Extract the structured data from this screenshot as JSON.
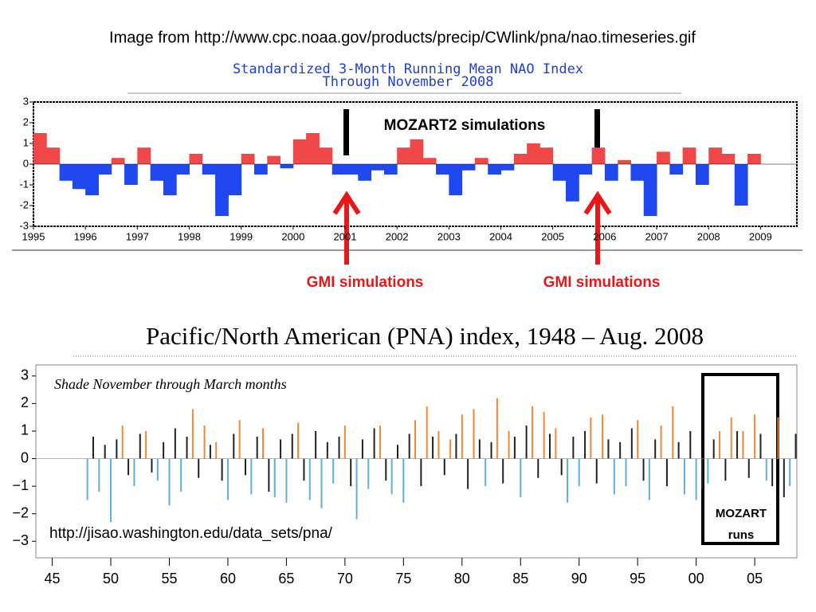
{
  "header": {
    "source_note": "Image from http://www.cpc.noaa.gov/products/precip/CWlink/pna/nao.timeseries.gif"
  },
  "chart_data": [
    {
      "type": "bar",
      "title": "Standardized 3-Month Running Mean NAO Index",
      "subtitle": "Through November 2008",
      "x": [
        1995,
        1995.25,
        1995.5,
        1995.75,
        1996,
        1996.25,
        1996.5,
        1996.75,
        1997,
        1997.25,
        1997.5,
        1997.75,
        1998,
        1998.25,
        1998.5,
        1998.75,
        1999,
        1999.25,
        1999.5,
        1999.75,
        2000,
        2000.25,
        2000.5,
        2000.75,
        2001,
        2001.25,
        2001.5,
        2001.75,
        2002,
        2002.25,
        2002.5,
        2002.75,
        2003,
        2003.25,
        2003.5,
        2003.75,
        2004,
        2004.25,
        2004.5,
        2004.75,
        2005,
        2005.25,
        2005.5,
        2005.75,
        2006,
        2006.25,
        2006.5,
        2006.75,
        2007,
        2007.25,
        2007.5,
        2007.75,
        2008,
        2008.25,
        2008.5,
        2008.75
      ],
      "values": [
        1.5,
        0.8,
        -0.8,
        -1.2,
        -1.5,
        -0.5,
        0.3,
        -1.0,
        0.8,
        -0.8,
        -1.5,
        -0.5,
        0.5,
        -0.5,
        -2.5,
        -1.5,
        0.5,
        -0.5,
        0.4,
        -0.2,
        1.2,
        1.5,
        0.8,
        -0.5,
        -0.5,
        -0.8,
        -0.3,
        -0.5,
        0.8,
        1.2,
        0.3,
        -0.5,
        -1.5,
        -0.3,
        0.3,
        -0.5,
        -0.3,
        0.5,
        1.0,
        0.8,
        -0.8,
        -1.8,
        -0.5,
        0.8,
        -0.8,
        0.2,
        -0.8,
        -2.5,
        0.6,
        -0.5,
        0.8,
        -1.0,
        0.8,
        0.5,
        -2.0,
        0.5
      ],
      "colors": {
        "positive": "#f04848",
        "negative": "#2048f0"
      },
      "xlim": [
        1995,
        2009.7
      ],
      "xticks": [
        1995,
        1996,
        1997,
        1998,
        1999,
        2000,
        2001,
        2002,
        2003,
        2004,
        2005,
        2006,
        2007,
        2008,
        2009
      ],
      "ylim": [
        -3,
        3
      ],
      "yticks": [
        -3,
        -2,
        -1,
        0,
        1,
        2,
        3
      ],
      "annotations": [
        {
          "text": "MOZART2  simulations"
        },
        {
          "text": "GMI  simulations"
        },
        {
          "text": "GMI  simulations"
        }
      ]
    },
    {
      "type": "bar",
      "title": "Pacific/North American (PNA) index, 1948 – Aug. 2008",
      "subtitle": "Shade November through March months",
      "x": [
        1948,
        1948.5,
        1949,
        1949.5,
        1950,
        1950.5,
        1951,
        1951.5,
        1952,
        1952.5,
        1953,
        1953.5,
        1954,
        1954.5,
        1955,
        1955.5,
        1956,
        1956.5,
        1957,
        1957.5,
        1958,
        1958.5,
        1959,
        1959.5,
        1960,
        1960.5,
        1961,
        1961.5,
        1962,
        1962.5,
        1963,
        1963.5,
        1964,
        1964.5,
        1965,
        1965.5,
        1966,
        1966.5,
        1967,
        1967.5,
        1968,
        1968.5,
        1969,
        1969.5,
        1970,
        1970.5,
        1971,
        1971.5,
        1972,
        1972.5,
        1973,
        1973.5,
        1974,
        1974.5,
        1975,
        1975.5,
        1976,
        1976.5,
        1977,
        1977.5,
        1978,
        1978.5,
        1979,
        1979.5,
        1980,
        1980.5,
        1981,
        1981.5,
        1982,
        1982.5,
        1983,
        1983.5,
        1984,
        1984.5,
        1985,
        1985.5,
        1986,
        1986.5,
        1987,
        1987.5,
        1988,
        1988.5,
        1989,
        1989.5,
        1990,
        1990.5,
        1991,
        1991.5,
        1992,
        1992.5,
        1993,
        1993.5,
        1994,
        1994.5,
        1995,
        1995.5,
        1996,
        1996.5,
        1997,
        1997.5,
        1998,
        1998.5,
        1999,
        1999.5,
        2000,
        2000.5,
        2001,
        2001.5,
        2002,
        2002.5,
        2003,
        2003.5,
        2004,
        2004.5,
        2005,
        2005.5,
        2006,
        2006.5,
        2007,
        2007.5,
        2008,
        2008.5
      ],
      "values": [
        -1.5,
        0.8,
        -1.2,
        0.5,
        -2.3,
        0.7,
        1.2,
        -0.6,
        -1.0,
        0.9,
        1.0,
        -0.5,
        -0.8,
        0.6,
        -1.7,
        1.1,
        -1.2,
        0.8,
        1.8,
        -0.7,
        1.2,
        0.5,
        0.6,
        -0.8,
        -1.5,
        0.9,
        1.4,
        -0.6,
        -1.3,
        0.8,
        1.1,
        -1.2,
        -1.4,
        0.7,
        -1.6,
        0.9,
        1.3,
        -0.8,
        -1.5,
        1.0,
        -1.8,
        0.6,
        -0.9,
        0.8,
        1.2,
        -1.0,
        -2.2,
        0.7,
        -1.1,
        1.1,
        1.2,
        -0.8,
        -1.3,
        0.5,
        -1.6,
        0.9,
        1.4,
        -1.0,
        1.9,
        0.8,
        1.0,
        -0.6,
        0.7,
        0.9,
        1.6,
        -1.1,
        1.8,
        0.7,
        -1.0,
        0.6,
        2.2,
        -0.9,
        1.0,
        0.8,
        -1.4,
        1.2,
        1.9,
        -0.7,
        1.7,
        0.9,
        1.1,
        -0.6,
        -1.6,
        0.8,
        -1.0,
        1.0,
        1.5,
        -0.9,
        1.6,
        0.7,
        -1.3,
        0.6,
        -1.0,
        1.1,
        1.4,
        -0.8,
        -1.5,
        0.7,
        1.2,
        -1.0,
        1.9,
        0.6,
        -1.3,
        1.0,
        -1.5,
        -1.1,
        -0.9,
        0.7,
        1.0,
        -0.8,
        1.5,
        1.0,
        1.0,
        -0.7,
        1.6,
        0.9,
        -0.8,
        -1.0,
        1.5,
        -1.4,
        -1.0,
        0.9
      ],
      "colors": {
        "winter_positive": "#f08838",
        "winter_negative": "#60aee0",
        "other": "#222222"
      },
      "xlim": [
        1943.6,
        2008.6
      ],
      "xticks": [
        {
          "value": 1945,
          "label": "45"
        },
        {
          "value": 1950,
          "label": "50"
        },
        {
          "value": 1955,
          "label": "55"
        },
        {
          "value": 1960,
          "label": "60"
        },
        {
          "value": 1965,
          "label": "65"
        },
        {
          "value": 1970,
          "label": "70"
        },
        {
          "value": 1975,
          "label": "75"
        },
        {
          "value": 1980,
          "label": "80"
        },
        {
          "value": 1985,
          "label": "85"
        },
        {
          "value": 1990,
          "label": "90"
        },
        {
          "value": 1995,
          "label": "95"
        },
        {
          "value": 2000,
          "label": "00"
        },
        {
          "value": 2005,
          "label": "05"
        }
      ],
      "ylim": [
        -3.6,
        3.4
      ],
      "yticks": [
        {
          "value": -3,
          "label": "−3"
        },
        {
          "value": -2,
          "label": "−2"
        },
        {
          "value": -1,
          "label": "−1"
        },
        0,
        1,
        2,
        3
      ],
      "annotations": [
        {
          "text": "http://jisao.washington.edu/data_sets/pna/"
        },
        {
          "text": "MOZART"
        },
        {
          "text": "runs"
        }
      ]
    }
  ]
}
